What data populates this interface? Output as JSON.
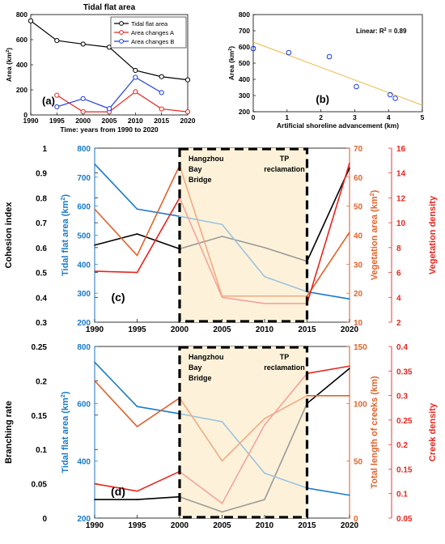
{
  "chart_data": [
    {
      "panel": "(a)",
      "type": "line",
      "title": "Tidal flat area",
      "xlabel": "Time: years from 1990 to 2020",
      "ylabel": "Area (km²)",
      "xlim": [
        1990,
        2020
      ],
      "ylim": [
        0,
        800
      ],
      "xticks": [
        1990,
        1995,
        2000,
        2005,
        2010,
        2015,
        2020
      ],
      "yticks": [
        0,
        200,
        400,
        600,
        800
      ],
      "legend": "top-right",
      "series": [
        {
          "name": "Tidal flat area",
          "color": "#000000",
          "marker": "circle",
          "x": [
            1990,
            1995,
            2000,
            2005,
            2010,
            2015,
            2020
          ],
          "y": [
            750,
            593,
            565,
            540,
            355,
            305,
            280
          ]
        },
        {
          "name": "Area changes A",
          "color": "#e8241d",
          "marker": "circle",
          "x": [
            1995,
            2000,
            2005,
            2010,
            2015,
            2020
          ],
          "y": [
            157,
            25,
            25,
            185,
            48,
            25
          ]
        },
        {
          "name": "Area changes B",
          "color": "#1f3de0",
          "marker": "circle",
          "x": [
            1995,
            2000,
            2005,
            2010,
            2015
          ],
          "y": [
            65,
            130,
            50,
            300,
            178
          ]
        }
      ]
    },
    {
      "panel": "(b)",
      "type": "scatter",
      "xlabel": "Artificial shoreline advancement (km)",
      "ylabel": "Area (km²)",
      "xlim": [
        0,
        5
      ],
      "ylim": [
        200,
        800
      ],
      "xticks": [
        0,
        1,
        2,
        3,
        4,
        5
      ],
      "yticks": [
        200,
        300,
        400,
        500,
        600,
        700,
        800
      ],
      "annotation": "Linear: R² = 0.89",
      "points": {
        "x": [
          0.0,
          1.05,
          2.25,
          3.05,
          4.05,
          4.2
        ],
        "y": [
          590,
          565,
          540,
          355,
          305,
          283
        ]
      },
      "fit": {
        "x": [
          0,
          5
        ],
        "y": [
          630,
          240
        ],
        "color": "#e8b840"
      }
    },
    {
      "panel": "(c)",
      "type": "line",
      "xlim": [
        1990,
        2020
      ],
      "xticks": [
        1990,
        1995,
        2000,
        2005,
        2010,
        2015,
        2020
      ],
      "shaded_range": [
        2000,
        2015
      ],
      "box_labels": {
        "left": [
          "Hangzhou",
          "Bay",
          "Bridge"
        ],
        "right": [
          "TP",
          "reclamation"
        ]
      },
      "axes": [
        {
          "label": "Cohesion index",
          "color": "#000000",
          "range": [
            0.3,
            1.0
          ],
          "ticks": [
            "0.3",
            "0.4",
            "0.5",
            "0.6",
            "0.7",
            "0.8",
            "0.9",
            "1"
          ]
        },
        {
          "label": "Tidal flat area (km²)",
          "color": "#1a7ac9",
          "range": [
            200,
            800
          ],
          "ticks": [
            "200",
            "300",
            "400",
            "500",
            "600",
            "700",
            "800"
          ]
        },
        {
          "label": "Vegetation area (km²)",
          "color": "#e2622b",
          "range": [
            10,
            70
          ],
          "ticks": [
            "10",
            "20",
            "30",
            "40",
            "50",
            "60",
            "70"
          ]
        },
        {
          "label": "Vegetation density",
          "color": "#e8241d",
          "range": [
            2,
            16
          ],
          "ticks": [
            "2",
            "4",
            "6",
            "8",
            "10",
            "12",
            "14",
            "16"
          ]
        }
      ],
      "series": [
        {
          "name": "Cohesion index",
          "axis": 0,
          "color": "#000000",
          "faded_color": "#999999",
          "x": [
            1990,
            1995,
            2000,
            2005,
            2010,
            2015,
            2020
          ],
          "y": [
            0.61,
            0.655,
            0.595,
            0.645,
            0.6,
            0.545,
            0.92
          ]
        },
        {
          "name": "Tidal flat area",
          "axis": 1,
          "color": "#1a7ac9",
          "faded_color": "#9bc3e0",
          "x": [
            1990,
            1995,
            2000,
            2005,
            2010,
            2015,
            2020
          ],
          "y": [
            745,
            590,
            565,
            537,
            357,
            305,
            280
          ]
        },
        {
          "name": "Vegetation area",
          "axis": 2,
          "color": "#e2622b",
          "faded_color": "#f0aa82",
          "x": [
            1990,
            1995,
            2000,
            2005,
            2010,
            2015,
            2020
          ],
          "y": [
            49,
            33,
            64,
            19,
            19,
            19,
            41
          ]
        },
        {
          "name": "Vegetation density",
          "axis": 3,
          "color": "#e8241d",
          "faded_color": "#f3a39d",
          "x": [
            1990,
            1995,
            2000,
            2005,
            2010,
            2015,
            2020
          ],
          "y": [
            6.1,
            6.0,
            12.0,
            4.0,
            3.5,
            3.5,
            14.8
          ]
        }
      ]
    },
    {
      "panel": "(d)",
      "type": "line",
      "xlim": [
        1990,
        2020
      ],
      "xticks": [
        1990,
        1995,
        2000,
        2005,
        2010,
        2015,
        2020
      ],
      "shaded_range": [
        2000,
        2015
      ],
      "box_labels": {
        "left": [
          "Hangzhou",
          "Bay",
          "Bridge"
        ],
        "right": [
          "TP",
          "reclamation"
        ]
      },
      "axes": [
        {
          "label": "Branching rate",
          "color": "#000000",
          "range": [
            0,
            0.25
          ],
          "ticks": [
            "0",
            "0.05",
            "0.1",
            "0.15",
            "0.2",
            "0.25"
          ]
        },
        {
          "label": "Tidal flat area (km²)",
          "color": "#1a7ac9",
          "range": [
            200,
            800
          ],
          "ticks": [
            "200",
            "400",
            "600",
            "800"
          ]
        },
        {
          "label": "Total length of creeks (km)",
          "color": "#e2622b",
          "range": [
            0,
            150
          ],
          "ticks": [
            "0",
            "50",
            "100",
            "150"
          ]
        },
        {
          "label": "Creek density",
          "color": "#e8241d",
          "range": [
            0.05,
            0.4
          ],
          "ticks": [
            "0.05",
            "0.1",
            "0.15",
            "0.2",
            "0.25",
            "0.3",
            "0.35",
            "0.4"
          ]
        }
      ],
      "series": [
        {
          "name": "Branching rate",
          "axis": 0,
          "color": "#000000",
          "faded_color": "#999999",
          "x": [
            1990,
            1995,
            2000,
            2005,
            2010,
            2015,
            2020
          ],
          "y": [
            0.027,
            0.027,
            0.031,
            0.009,
            0.027,
            0.167,
            0.218
          ]
        },
        {
          "name": "Tidal flat area",
          "axis": 1,
          "color": "#1a7ac9",
          "faded_color": "#9bc3e0",
          "x": [
            1990,
            1995,
            2000,
            2005,
            2010,
            2015,
            2020
          ],
          "y": [
            745,
            590,
            565,
            537,
            357,
            305,
            280
          ]
        },
        {
          "name": "Total length of creeks",
          "axis": 2,
          "color": "#e2622b",
          "faded_color": "#f0aa82",
          "x": [
            1990,
            1995,
            2000,
            2005,
            2010,
            2015,
            2020
          ],
          "y": [
            120,
            80,
            105,
            50,
            87,
            107,
            107
          ]
        },
        {
          "name": "Creek density",
          "axis": 3,
          "color": "#e8241d",
          "faded_color": "#f3a39d",
          "x": [
            1990,
            1995,
            2000,
            2005,
            2010,
            2015,
            2020
          ],
          "y": [
            0.12,
            0.105,
            0.145,
            0.08,
            0.24,
            0.345,
            0.36
          ]
        }
      ]
    }
  ]
}
